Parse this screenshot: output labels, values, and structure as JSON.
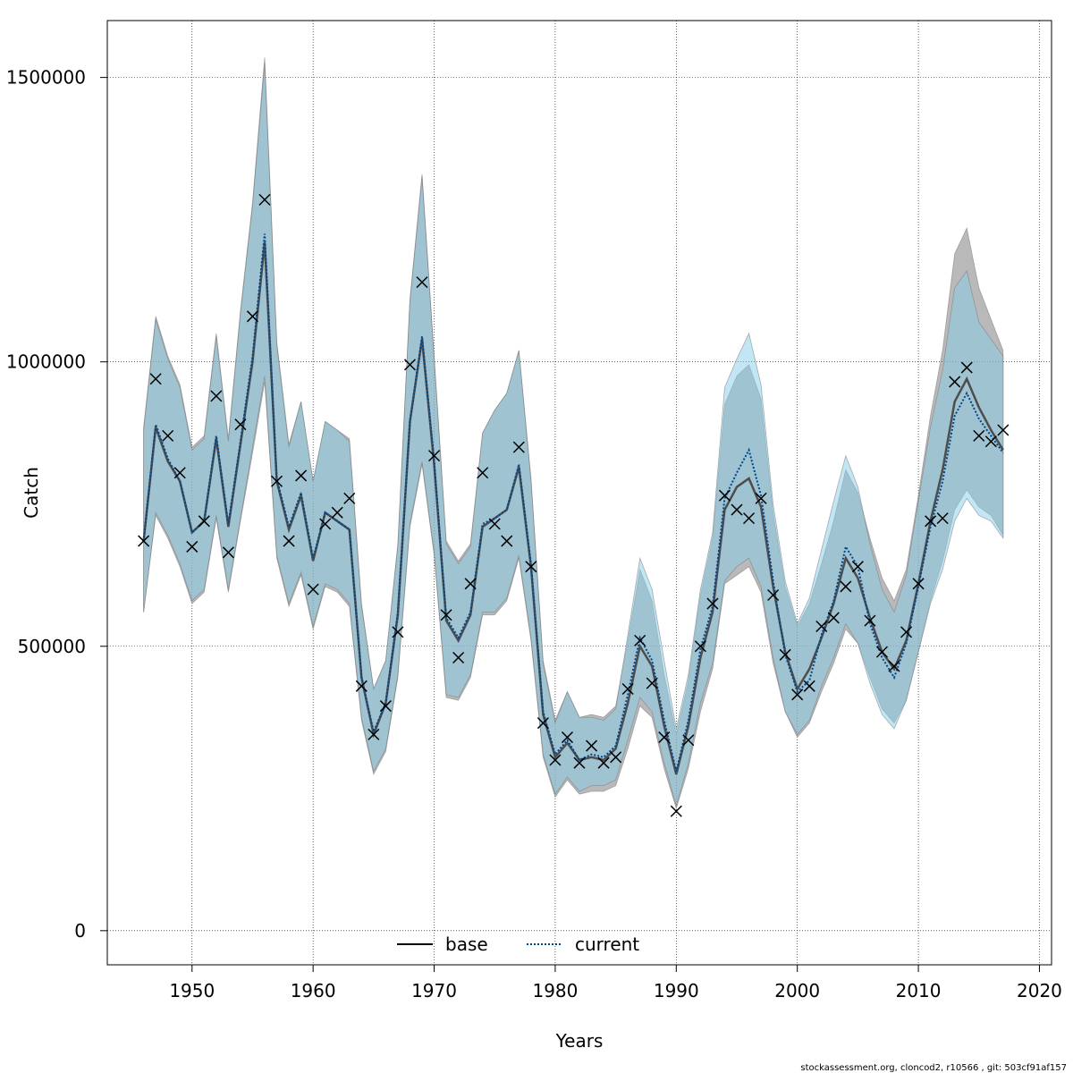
{
  "chart_data": {
    "type": "line",
    "title": "",
    "xlabel": "Years",
    "ylabel": "Catch",
    "xlim": [
      1943,
      2021
    ],
    "ylim": [
      -60000,
      1600000
    ],
    "x_ticks": [
      1950,
      1960,
      1970,
      1980,
      1990,
      2000,
      2010,
      2020
    ],
    "y_ticks": [
      0,
      500000,
      1000000,
      1500000
    ],
    "y_tick_labels": [
      "0",
      "500000",
      "1000000",
      "1500000"
    ],
    "grid": true,
    "legend_position": "bottom",
    "footer": "stockassessment.org, cloncod2, r10566 , git: 503cf91af157",
    "colors": {
      "base_band": "#808080",
      "base_line": "#4d4d4d",
      "current_band": "#87ceeb",
      "current_line": "#00468b",
      "observed": "#000000"
    },
    "x": [
      1946,
      1947,
      1948,
      1949,
      1950,
      1951,
      1952,
      1953,
      1954,
      1955,
      1956,
      1957,
      1958,
      1959,
      1960,
      1961,
      1962,
      1963,
      1964,
      1965,
      1966,
      1967,
      1968,
      1969,
      1970,
      1971,
      1972,
      1973,
      1974,
      1975,
      1976,
      1977,
      1978,
      1979,
      1980,
      1981,
      1982,
      1983,
      1984,
      1985,
      1986,
      1987,
      1988,
      1989,
      1990,
      1991,
      1992,
      1993,
      1994,
      1995,
      1996,
      1997,
      1998,
      1999,
      2000,
      2001,
      2002,
      2003,
      2004,
      2005,
      2006,
      2007,
      2008,
      2009,
      2010,
      2011,
      2012,
      2013,
      2014,
      2015,
      2016,
      2017
    ],
    "observed": {
      "name": "",
      "values": [
        685000,
        970000,
        870000,
        805000,
        675000,
        720000,
        940000,
        665000,
        890000,
        1080000,
        1285000,
        790000,
        685000,
        800000,
        600000,
        715000,
        735000,
        760000,
        430000,
        345000,
        395000,
        525000,
        995000,
        1140000,
        835000,
        555000,
        480000,
        610000,
        805000,
        715000,
        685000,
        850000,
        640000,
        365000,
        300000,
        340000,
        295000,
        325000,
        295000,
        305000,
        425000,
        510000,
        435000,
        340000,
        210000,
        335000,
        500000,
        575000,
        765000,
        740000,
        725000,
        760000,
        590000,
        485000,
        415000,
        430000,
        535000,
        550000,
        605000,
        640000,
        545000,
        490000,
        465000,
        525000,
        610000,
        720000,
        725000,
        965000,
        990000,
        870000,
        860000,
        880000
      ]
    },
    "series": [
      {
        "name": "base",
        "values": [
          685000,
          885000,
          825000,
          790000,
          700000,
          720000,
          865000,
          710000,
          855000,
          1000000,
          1210000,
          790000,
          705000,
          765000,
          650000,
          735000,
          720000,
          705000,
          445000,
          345000,
          400000,
          555000,
          895000,
          1040000,
          820000,
          545000,
          510000,
          555000,
          710000,
          725000,
          740000,
          815000,
          640000,
          380000,
          305000,
          330000,
          300000,
          305000,
          300000,
          320000,
          400000,
          500000,
          465000,
          360000,
          275000,
          360000,
          480000,
          560000,
          740000,
          780000,
          795000,
          745000,
          605000,
          490000,
          425000,
          460000,
          515000,
          575000,
          655000,
          620000,
          550000,
          490000,
          460000,
          510000,
          610000,
          720000,
          810000,
          930000,
          970000,
          920000,
          880000,
          845000
        ],
        "lower": [
          560000,
          730000,
          690000,
          640000,
          575000,
          595000,
          725000,
          595000,
          720000,
          840000,
          965000,
          655000,
          570000,
          625000,
          530000,
          605000,
          595000,
          570000,
          370000,
          275000,
          315000,
          445000,
          710000,
          820000,
          660000,
          410000,
          405000,
          445000,
          555000,
          555000,
          580000,
          655000,
          510000,
          305000,
          235000,
          265000,
          240000,
          245000,
          245000,
          255000,
          320000,
          395000,
          375000,
          285000,
          215000,
          285000,
          385000,
          460000,
          610000,
          625000,
          640000,
          595000,
          470000,
          385000,
          340000,
          365000,
          420000,
          470000,
          530000,
          505000,
          445000,
          390000,
          365000,
          405000,
          490000,
          580000,
          650000,
          740000,
          775000,
          745000,
          730000,
          695000
        ],
        "upper": [
          885000,
          1080000,
          1010000,
          960000,
          850000,
          870000,
          1050000,
          865000,
          1090000,
          1280000,
          1535000,
          1035000,
          855000,
          930000,
          790000,
          895000,
          880000,
          865000,
          575000,
          425000,
          475000,
          680000,
          1110000,
          1330000,
          1010000,
          685000,
          650000,
          680000,
          875000,
          915000,
          945000,
          1020000,
          795000,
          475000,
          370000,
          420000,
          375000,
          380000,
          375000,
          395000,
          510000,
          635000,
          580000,
          450000,
          345000,
          440000,
          590000,
          690000,
          925000,
          975000,
          995000,
          935000,
          735000,
          605000,
          535000,
          575000,
          645000,
          720000,
          810000,
          770000,
          690000,
          620000,
          580000,
          635000,
          765000,
          905000,
          1020000,
          1190000,
          1235000,
          1130000,
          1075000,
          1020000
        ]
      },
      {
        "name": "current",
        "values": [
          685000,
          890000,
          830000,
          790000,
          700000,
          720000,
          870000,
          715000,
          860000,
          1010000,
          1225000,
          795000,
          710000,
          770000,
          655000,
          735000,
          720000,
          705000,
          445000,
          350000,
          400000,
          560000,
          895000,
          1045000,
          825000,
          550000,
          515000,
          560000,
          715000,
          725000,
          740000,
          820000,
          645000,
          385000,
          310000,
          335000,
          300000,
          310000,
          305000,
          325000,
          415000,
          515000,
          475000,
          370000,
          280000,
          370000,
          495000,
          570000,
          760000,
          805000,
          845000,
          765000,
          615000,
          485000,
          420000,
          440000,
          520000,
          580000,
          675000,
          640000,
          540000,
          480000,
          445000,
          505000,
          605000,
          710000,
          790000,
          905000,
          945000,
          900000,
          870000,
          840000
        ],
        "lower": [
          560000,
          735000,
          695000,
          645000,
          580000,
          600000,
          730000,
          600000,
          725000,
          850000,
          975000,
          660000,
          575000,
          630000,
          535000,
          610000,
          600000,
          575000,
          375000,
          280000,
          320000,
          450000,
          715000,
          825000,
          665000,
          415000,
          410000,
          450000,
          560000,
          560000,
          585000,
          660000,
          515000,
          310000,
          240000,
          270000,
          245000,
          255000,
          255000,
          265000,
          335000,
          410000,
          385000,
          295000,
          220000,
          295000,
          400000,
          470000,
          615000,
          640000,
          655000,
          605000,
          480000,
          385000,
          345000,
          370000,
          430000,
          480000,
          540000,
          505000,
          435000,
          380000,
          355000,
          405000,
          490000,
          575000,
          635000,
          720000,
          760000,
          730000,
          720000,
          690000
        ],
        "upper": [
          880000,
          1075000,
          1005000,
          955000,
          845000,
          865000,
          1045000,
          860000,
          1085000,
          1275000,
          1525000,
          1030000,
          850000,
          930000,
          790000,
          895000,
          880000,
          860000,
          570000,
          425000,
          475000,
          675000,
          1105000,
          1325000,
          1005000,
          680000,
          645000,
          675000,
          875000,
          915000,
          945000,
          1020000,
          790000,
          470000,
          365000,
          420000,
          375000,
          375000,
          370000,
          390000,
          520000,
          655000,
          600000,
          475000,
          355000,
          450000,
          600000,
          700000,
          955000,
          1005000,
          1050000,
          960000,
          750000,
          615000,
          540000,
          585000,
          670000,
          755000,
          835000,
          780000,
          680000,
          600000,
          560000,
          625000,
          755000,
          885000,
          985000,
          1130000,
          1160000,
          1070000,
          1040000,
          1010000
        ]
      }
    ]
  }
}
